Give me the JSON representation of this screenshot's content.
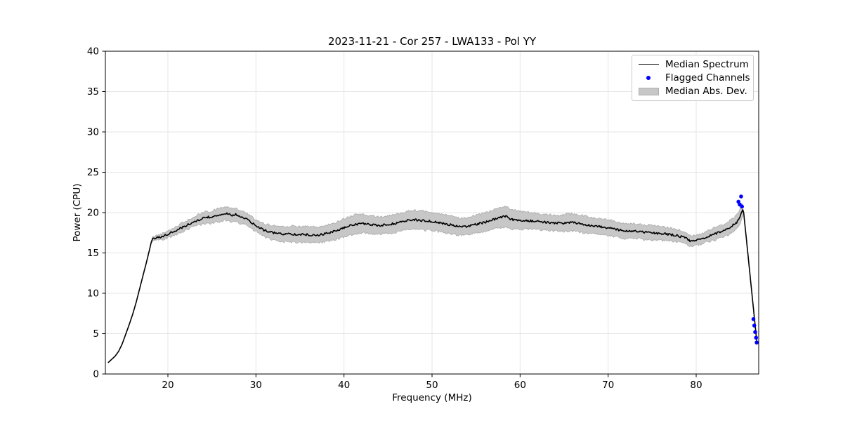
{
  "chart_data": {
    "type": "line",
    "title": "2023-11-21 - Cor 257 - LWA133 - Pol YY",
    "xlabel": "Frequency (MHz)",
    "ylabel": "Power (CPU)",
    "xlim": [
      12.9,
      87.1
    ],
    "ylim": [
      0,
      40
    ],
    "xticks": [
      20,
      30,
      40,
      50,
      60,
      70,
      80
    ],
    "yticks": [
      0,
      5,
      10,
      15,
      20,
      25,
      30,
      35,
      40
    ],
    "grid": true,
    "legend_position": "upper right",
    "legend": [
      {
        "label": "Median Spectrum",
        "style": "line",
        "color": "#000000"
      },
      {
        "label": "Flagged Channels",
        "style": "dot",
        "color": "#0000ff"
      },
      {
        "label": "Median Abs. Dev.",
        "style": "band",
        "color": "#c7c7c7"
      }
    ],
    "series": [
      {
        "name": "Median Spectrum",
        "style": "line",
        "color": "#000000",
        "points": [
          [
            13.2,
            1.4
          ],
          [
            13.6,
            1.8
          ],
          [
            14.0,
            2.2
          ],
          [
            14.4,
            2.8
          ],
          [
            14.8,
            3.7
          ],
          [
            15.2,
            4.9
          ],
          [
            15.6,
            6.1
          ],
          [
            16.0,
            7.4
          ],
          [
            16.4,
            8.9
          ],
          [
            16.8,
            10.6
          ],
          [
            17.2,
            12.3
          ],
          [
            17.6,
            14.0
          ],
          [
            18.0,
            15.8
          ],
          [
            18.15,
            16.55
          ],
          [
            18.4,
            16.8
          ],
          [
            19,
            16.95
          ],
          [
            19.5,
            17.1
          ],
          [
            20,
            17.35
          ],
          [
            20.5,
            17.55
          ],
          [
            21,
            17.8
          ],
          [
            21.5,
            18.1
          ],
          [
            22,
            18.35
          ],
          [
            22.5,
            18.6
          ],
          [
            23,
            18.9
          ],
          [
            23.5,
            19.1
          ],
          [
            24,
            19.3
          ],
          [
            24.6,
            19.45
          ],
          [
            24.9,
            19.3
          ],
          [
            25.2,
            19.55
          ],
          [
            25.8,
            19.7
          ],
          [
            26.3,
            19.85
          ],
          [
            26.8,
            19.9
          ],
          [
            27.2,
            19.65
          ],
          [
            27.7,
            19.8
          ],
          [
            28.2,
            19.45
          ],
          [
            28.7,
            19.3
          ],
          [
            29.2,
            19.0
          ],
          [
            29.7,
            18.6
          ],
          [
            30.2,
            18.2
          ],
          [
            31,
            17.8
          ],
          [
            32,
            17.5
          ],
          [
            33,
            17.35
          ],
          [
            34,
            17.35
          ],
          [
            35,
            17.3
          ],
          [
            36,
            17.25
          ],
          [
            37,
            17.2
          ],
          [
            38,
            17.4
          ],
          [
            39,
            17.7
          ],
          [
            40,
            18.1
          ],
          [
            41,
            18.5
          ],
          [
            42,
            18.65
          ],
          [
            43,
            18.5
          ],
          [
            44,
            18.4
          ],
          [
            45,
            18.5
          ],
          [
            46,
            18.7
          ],
          [
            47,
            19.0
          ],
          [
            48,
            19.1
          ],
          [
            49,
            19.0
          ],
          [
            50,
            18.9
          ],
          [
            51,
            18.7
          ],
          [
            52,
            18.5
          ],
          [
            53,
            18.3
          ],
          [
            54,
            18.3
          ],
          [
            55,
            18.55
          ],
          [
            56,
            18.8
          ],
          [
            57,
            19.15
          ],
          [
            58,
            19.45
          ],
          [
            58.4,
            19.55
          ],
          [
            59,
            19.15
          ],
          [
            60,
            19.05
          ],
          [
            61,
            19.0
          ],
          [
            62,
            18.9
          ],
          [
            63,
            18.8
          ],
          [
            64,
            18.7
          ],
          [
            65,
            18.7
          ],
          [
            66,
            18.8
          ],
          [
            67,
            18.6
          ],
          [
            68,
            18.4
          ],
          [
            69,
            18.3
          ],
          [
            70,
            18.1
          ],
          [
            71,
            17.9
          ],
          [
            72,
            17.7
          ],
          [
            73,
            17.7
          ],
          [
            74,
            17.6
          ],
          [
            75,
            17.5
          ],
          [
            76,
            17.4
          ],
          [
            77,
            17.3
          ],
          [
            78,
            17.1
          ],
          [
            78.7,
            16.9
          ],
          [
            79.3,
            16.5
          ],
          [
            79.8,
            16.55
          ],
          [
            80.5,
            16.7
          ],
          [
            81.2,
            17.0
          ],
          [
            82,
            17.3
          ],
          [
            83,
            17.7
          ],
          [
            84,
            18.3
          ],
          [
            84.6,
            18.8
          ],
          [
            85.0,
            19.6
          ],
          [
            85.2,
            20.1
          ],
          [
            85.35,
            20.5
          ],
          [
            85.6,
            17.8
          ],
          [
            86.0,
            13.5
          ],
          [
            86.4,
            9.2
          ],
          [
            86.7,
            6.0
          ],
          [
            86.9,
            3.9
          ]
        ]
      },
      {
        "name": "Median Abs. Dev.",
        "style": "band",
        "color": "#c7c7c7",
        "range": [
          18.2,
          85.35
        ],
        "half_width": [
          [
            18.2,
            0.25
          ],
          [
            19,
            0.3
          ],
          [
            20,
            0.45
          ],
          [
            21,
            0.5
          ],
          [
            22,
            0.55
          ],
          [
            23,
            0.6
          ],
          [
            24,
            0.7
          ],
          [
            25,
            0.75
          ],
          [
            26,
            0.85
          ],
          [
            27,
            0.85
          ],
          [
            28,
            0.8
          ],
          [
            29,
            0.75
          ],
          [
            30,
            0.7
          ],
          [
            31,
            0.8
          ],
          [
            32,
            0.9
          ],
          [
            33,
            0.95
          ],
          [
            34,
            1.0
          ],
          [
            35,
            1.0
          ],
          [
            36,
            1.0
          ],
          [
            37,
            1.0
          ],
          [
            38,
            1.0
          ],
          [
            39,
            1.05
          ],
          [
            40,
            1.15
          ],
          [
            41,
            1.2
          ],
          [
            42,
            1.15
          ],
          [
            43,
            1.1
          ],
          [
            44,
            1.05
          ],
          [
            45,
            1.1
          ],
          [
            46,
            1.1
          ],
          [
            47,
            1.15
          ],
          [
            48,
            1.2
          ],
          [
            49,
            1.15
          ],
          [
            50,
            1.1
          ],
          [
            51,
            1.1
          ],
          [
            52,
            1.1
          ],
          [
            53,
            1.05
          ],
          [
            54,
            1.05
          ],
          [
            55,
            1.1
          ],
          [
            56,
            1.1
          ],
          [
            57,
            1.2
          ],
          [
            58,
            1.3
          ],
          [
            59,
            1.2
          ],
          [
            60,
            1.1
          ],
          [
            61,
            1.05
          ],
          [
            62,
            1.0
          ],
          [
            63,
            1.0
          ],
          [
            64,
            1.0
          ],
          [
            65,
            1.05
          ],
          [
            66,
            1.1
          ],
          [
            67,
            1.05
          ],
          [
            68,
            1.0
          ],
          [
            69,
            1.0
          ],
          [
            70,
            1.0
          ],
          [
            71,
            0.95
          ],
          [
            72,
            0.9
          ],
          [
            73,
            0.9
          ],
          [
            74,
            0.9
          ],
          [
            75,
            0.9
          ],
          [
            76,
            0.85
          ],
          [
            77,
            0.8
          ],
          [
            78,
            0.75
          ],
          [
            79,
            0.65
          ],
          [
            80,
            0.6
          ],
          [
            81,
            0.65
          ],
          [
            82,
            0.75
          ],
          [
            83,
            0.8
          ],
          [
            84,
            0.85
          ],
          [
            85,
            0.9
          ],
          [
            85.35,
            0.9
          ]
        ]
      },
      {
        "name": "Flagged Channels",
        "style": "scatter",
        "color": "#0000ff",
        "points": [
          [
            84.8,
            21.35
          ],
          [
            84.95,
            21.0
          ],
          [
            85.1,
            22.0
          ],
          [
            85.2,
            20.75
          ],
          [
            86.5,
            6.8
          ],
          [
            86.6,
            6.0
          ],
          [
            86.7,
            5.2
          ],
          [
            86.8,
            4.5
          ],
          [
            86.87,
            3.9
          ]
        ]
      }
    ]
  },
  "colors": {
    "line": "#000000",
    "flagged": "#0000ff",
    "band_fill": "#c7c7c7",
    "band_edge": "#ababab",
    "grid": "#e6e6e6",
    "spine": "#000000",
    "tick_label": "#000000",
    "legend_edge": "#c9c9c9",
    "background": "#ffffff"
  }
}
